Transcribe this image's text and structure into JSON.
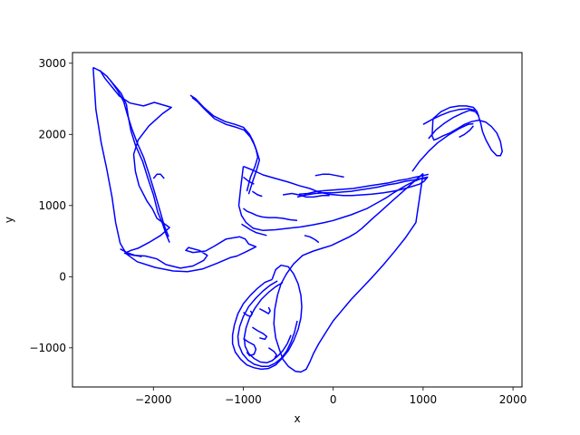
{
  "chart_data": {
    "type": "line",
    "title": "",
    "xlabel": "x",
    "ylabel": "y",
    "xlim": [
      -2900,
      2100
    ],
    "ylim": [
      -1550,
      3150
    ],
    "xticks": [
      -2000,
      -1000,
      0,
      1000,
      2000
    ],
    "yticks": [
      -1000,
      0,
      1000,
      2000,
      3000
    ],
    "xtick_labels": [
      "−2000",
      "−1000",
      "0",
      "1000",
      "2000"
    ],
    "ytick_labels": [
      "−1000",
      "0",
      "1000",
      "2000",
      "3000"
    ],
    "grid": false,
    "line_color": "#0000ff",
    "series": [
      {
        "x": [
          -2670,
          -2590,
          -2540,
          -2470,
          -2380,
          -2260,
          -2110,
          -1990,
          -1800,
          -1900,
          -2050,
          -2170,
          -2220,
          -2200,
          -2160,
          -2070,
          -2010,
          -1960,
          -1820,
          -1920,
          -2050,
          -2170,
          -2250,
          -2320,
          -2220,
          -2090,
          -1960,
          -1860,
          -1700,
          -1560,
          -1440,
          -1400,
          -1490,
          -1610,
          -1640,
          -1560,
          -1420,
          -1320,
          -1190,
          -1040,
          -980,
          -940,
          -880,
          -860,
          -970,
          -1070,
          -1140,
          -1290,
          -1450,
          -1620,
          -1780,
          -1980,
          -2180,
          -2300,
          -2370,
          -2420,
          -2460,
          -2520,
          -2580,
          -2640,
          -2670
        ],
        "y": [
          2940,
          2890,
          2790,
          2680,
          2540,
          2440,
          2400,
          2450,
          2380,
          2290,
          2120,
          1920,
          1720,
          1480,
          1280,
          1060,
          950,
          820,
          690,
          580,
          480,
          400,
          370,
          330,
          300,
          290,
          250,
          170,
          120,
          150,
          230,
          300,
          370,
          410,
          370,
          340,
          360,
          430,
          530,
          560,
          530,
          460,
          430,
          420,
          350,
          290,
          270,
          190,
          110,
          70,
          80,
          130,
          210,
          320,
          470,
          760,
          1120,
          1520,
          1880,
          2350,
          2940
        ]
      },
      {
        "x": [
          -2600,
          -2520,
          -2440,
          -2360,
          -2300,
          -2280,
          -2250,
          -2200,
          -2120,
          -2060,
          -2000,
          -1950,
          -1900,
          -1860,
          -1820
        ],
        "y": [
          2900,
          2820,
          2700,
          2580,
          2420,
          2250,
          2050,
          1850,
          1620,
          1380,
          1150,
          900,
          750,
          600,
          480
        ]
      },
      {
        "x": [
          -2480,
          -2400,
          -2330,
          -2290,
          -2240,
          -2180,
          -2110,
          -2050,
          -1990,
          -1930,
          -1880,
          -1830
        ],
        "y": [
          2760,
          2620,
          2460,
          2280,
          2080,
          1880,
          1680,
          1450,
          1200,
          940,
          720,
          560
        ]
      },
      {
        "x": [
          -1590,
          -1530,
          -1440,
          -1330,
          -1200,
          -1090,
          -1000,
          -930,
          -890,
          -860,
          -840,
          -870,
          -920,
          -960
        ],
        "y": [
          2550,
          2500,
          2380,
          2260,
          2180,
          2140,
          2100,
          2000,
          1900,
          1800,
          1680,
          1550,
          1400,
          1200
        ]
      },
      {
        "x": [
          -1570,
          -1510,
          -1420,
          -1320,
          -1190,
          -1080,
          -990,
          -920,
          -880,
          -850,
          -820,
          -850,
          -890,
          -940
        ],
        "y": [
          2520,
          2460,
          2340,
          2220,
          2140,
          2100,
          2060,
          1960,
          1860,
          1760,
          1640,
          1510,
          1360,
          1160
        ]
      },
      {
        "x": [
          -1000,
          -900,
          -780,
          -640,
          -500,
          -380,
          -260,
          -160,
          -60,
          20,
          110,
          210,
          320,
          430,
          560,
          660,
          740,
          800,
          880,
          960,
          1010,
          1050,
          980,
          900,
          820,
          740,
          660,
          590,
          520,
          450,
          380,
          300,
          200,
          100,
          0,
          -100,
          -220,
          -360,
          -500,
          -640,
          -780,
          -890,
          -970,
          -1020,
          -1050,
          -1030,
          -1000
        ],
        "y": [
          1550,
          1500,
          1430,
          1380,
          1330,
          1280,
          1240,
          1190,
          1160,
          1150,
          1140,
          1140,
          1150,
          1160,
          1180,
          1200,
          1220,
          1240,
          1270,
          1300,
          1340,
          1400,
          1380,
          1340,
          1290,
          1230,
          1170,
          1110,
          1060,
          1010,
          960,
          920,
          870,
          830,
          790,
          760,
          730,
          700,
          680,
          660,
          650,
          680,
          760,
          860,
          1000,
          1240,
          1550
        ]
      },
      {
        "x": [
          1000,
          920,
          840,
          760,
          680,
          600,
          520,
          440,
          380,
          320,
          260,
          180,
          80,
          -20,
          -120,
          -220,
          -340,
          -440,
          -520,
          -580,
          -620,
          -650,
          -660,
          -640,
          -600,
          -560,
          -500,
          -420,
          -360,
          -300,
          -260,
          -220,
          -160,
          -80,
          0,
          100,
          200,
          320,
          440,
          560,
          680,
          800,
          920,
          1000
        ],
        "y": [
          1450,
          1360,
          1270,
          1180,
          1090,
          1000,
          910,
          820,
          750,
          680,
          620,
          560,
          500,
          440,
          400,
          360,
          300,
          180,
          40,
          -100,
          -260,
          -460,
          -660,
          -860,
          -1020,
          -1160,
          -1260,
          -1330,
          -1340,
          -1300,
          -1200,
          -1080,
          -940,
          -780,
          -620,
          -470,
          -320,
          -160,
          0,
          170,
          350,
          540,
          760,
          1450
        ]
      },
      {
        "x": [
          -680,
          -760,
          -840,
          -920,
          -1000,
          -1060,
          -1100,
          -1120,
          -1120,
          -1090,
          -1030,
          -960,
          -880,
          -800,
          -720,
          -640,
          -570,
          -500,
          -440,
          -390,
          -360,
          -350,
          -360,
          -390,
          -440,
          -500,
          -580,
          -640,
          -680
        ],
        "y": [
          -40,
          -80,
          -160,
          -260,
          -380,
          -520,
          -680,
          -820,
          -940,
          -1060,
          -1160,
          -1240,
          -1280,
          -1300,
          -1290,
          -1240,
          -1150,
          -1040,
          -900,
          -740,
          -580,
          -420,
          -260,
          -100,
          40,
          140,
          160,
          100,
          -40
        ]
      },
      {
        "x": [
          -620,
          -700,
          -780,
          -860,
          -940,
          -1000,
          -1040,
          -1060,
          -1050,
          -1010,
          -950,
          -880,
          -800,
          -720,
          -650,
          -580,
          -520,
          -470,
          -430,
          -400
        ],
        "y": [
          -60,
          -120,
          -200,
          -300,
          -420,
          -560,
          -700,
          -840,
          -960,
          -1080,
          -1170,
          -1230,
          -1260,
          -1260,
          -1220,
          -1150,
          -1050,
          -920,
          -780,
          -620
        ]
      },
      {
        "x": [
          -560,
          -640,
          -720,
          -800,
          -870,
          -930,
          -970,
          -990,
          -980,
          -940,
          -880,
          -810,
          -740,
          -680,
          -620,
          -560,
          -510,
          -470
        ],
        "y": [
          -80,
          -140,
          -220,
          -320,
          -440,
          -580,
          -720,
          -860,
          -980,
          -1080,
          -1150,
          -1200,
          -1210,
          -1180,
          -1120,
          -1040,
          -940,
          -820
        ]
      },
      {
        "x": [
          -1000,
          -940,
          -880,
          -860,
          -880,
          -930,
          -960
        ],
        "y": [
          -870,
          -920,
          -960,
          -1020,
          -1090,
          -1110,
          -1060
        ]
      },
      {
        "x": [
          -900,
          -840,
          -780,
          -740,
          -760,
          -820
        ],
        "y": [
          -710,
          -760,
          -800,
          -840,
          -880,
          -860
        ]
      },
      {
        "x": [
          -1000,
          -960,
          -920,
          -900,
          -920
        ],
        "y": [
          -500,
          -540,
          -560,
          -520,
          -480
        ]
      },
      {
        "x": [
          -820,
          -760,
          -720,
          -700,
          -720
        ],
        "y": [
          -450,
          -490,
          -520,
          -480,
          -430
        ]
      },
      {
        "x": [
          -720,
          -660,
          -630,
          -650
        ],
        "y": [
          -1000,
          -1050,
          -1100,
          -1140
        ]
      },
      {
        "x": [
          1110,
          1200,
          1300,
          1400,
          1480,
          1560,
          1600,
          1620,
          1640,
          1660,
          1700,
          1760,
          1820,
          1860,
          1880,
          1860,
          1820,
          1760,
          1700,
          1620,
          1540,
          1460,
          1380,
          1300,
          1220,
          1160,
          1120,
          1100,
          1110
        ],
        "y": [
          2220,
          2320,
          2380,
          2400,
          2400,
          2380,
          2320,
          2240,
          2160,
          2040,
          1920,
          1780,
          1700,
          1700,
          1760,
          1900,
          2020,
          2110,
          2170,
          2200,
          2180,
          2140,
          2080,
          2020,
          1980,
          1940,
          1920,
          1980,
          2220
        ]
      },
      {
        "x": [
          1060,
          1140,
          1240,
          1340,
          1440,
          1520,
          1580,
          1620
        ],
        "y": [
          1940,
          2060,
          2160,
          2240,
          2300,
          2340,
          2320,
          2260
        ]
      },
      {
        "x": [
          880,
          960,
          1060,
          1160,
          1280,
          1400,
          1500,
          1560
        ],
        "y": [
          1480,
          1620,
          1760,
          1880,
          1990,
          2080,
          2140,
          2150
        ]
      },
      {
        "x": [
          1000,
          1100,
          1200,
          1300,
          1400,
          1500,
          1580
        ],
        "y": [
          2140,
          2210,
          2270,
          2320,
          2350,
          2360,
          2340
        ]
      },
      {
        "x": [
          -400,
          -300,
          -200,
          -100,
          0,
          100,
          200,
          300,
          400,
          500,
          600,
          700,
          800,
          900,
          980,
          1040
        ],
        "y": [
          1120,
          1150,
          1170,
          1180,
          1180,
          1190,
          1200,
          1220,
          1240,
          1260,
          1290,
          1310,
          1340,
          1360,
          1380,
          1380
        ]
      },
      {
        "x": [
          -380,
          -280,
          -180,
          -80,
          20,
          120,
          220,
          320,
          420,
          520,
          620,
          720,
          820,
          920,
          1000,
          1060
        ],
        "y": [
          1160,
          1170,
          1200,
          1210,
          1220,
          1230,
          1240,
          1260,
          1280,
          1300,
          1320,
          1350,
          1370,
          1400,
          1420,
          1440
        ]
      },
      {
        "x": [
          -1000,
          -960,
          -900,
          -850,
          -790,
          -720,
          -640,
          -560,
          -480,
          -400
        ],
        "y": [
          960,
          920,
          890,
          860,
          840,
          830,
          830,
          820,
          800,
          790
        ]
      },
      {
        "x": [
          -1020,
          -970,
          -920,
          -860,
          -800,
          -740
        ],
        "y": [
          740,
          700,
          660,
          620,
          600,
          580
        ]
      },
      {
        "x": [
          -1000,
          -940,
          -880
        ],
        "y": [
          1400,
          1340,
          1300
        ]
      },
      {
        "x": [
          -900,
          -840,
          -790
        ],
        "y": [
          1200,
          1150,
          1130
        ]
      },
      {
        "x": [
          -2370,
          -2280,
          -2200,
          -2130
        ],
        "y": [
          390,
          330,
          300,
          280
        ]
      },
      {
        "x": [
          -2000,
          -1960,
          -1920,
          -1880
        ],
        "y": [
          1380,
          1440,
          1440,
          1380
        ]
      },
      {
        "x": [
          -560,
          -460,
          -380,
          -300,
          -220,
          -120,
          -40
        ],
        "y": [
          1150,
          1170,
          1150,
          1120,
          1120,
          1140,
          1140
        ]
      },
      {
        "x": [
          -200,
          -120,
          -40,
          40,
          120
        ],
        "y": [
          1420,
          1440,
          1440,
          1420,
          1400
        ]
      },
      {
        "x": [
          -320,
          -260,
          -200,
          -160
        ],
        "y": [
          580,
          560,
          520,
          480
        ]
      },
      {
        "x": [
          1400,
          1460,
          1520,
          1560
        ],
        "y": [
          1960,
          2000,
          2060,
          2120
        ]
      }
    ]
  }
}
